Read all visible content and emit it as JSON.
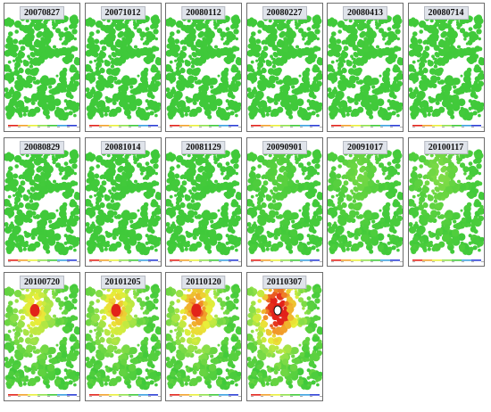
{
  "panels": [
    {
      "date": "20070827",
      "deformation": 0.0
    },
    {
      "date": "20071012",
      "deformation": 0.0
    },
    {
      "date": "20080112",
      "deformation": 0.02
    },
    {
      "date": "20080227",
      "deformation": 0.05
    },
    {
      "date": "20080413",
      "deformation": 0.08
    },
    {
      "date": "20080714",
      "deformation": 0.08
    },
    {
      "date": "20080829",
      "deformation": 0.05
    },
    {
      "date": "20081014",
      "deformation": 0.05
    },
    {
      "date": "20081129",
      "deformation": 0.08
    },
    {
      "date": "20090901",
      "deformation": 0.25
    },
    {
      "date": "20091017",
      "deformation": 0.35
    },
    {
      "date": "20100117",
      "deformation": 0.4
    },
    {
      "date": "20100720",
      "deformation": 0.7
    },
    {
      "date": "20101205",
      "deformation": 0.75
    },
    {
      "date": "20110120",
      "deformation": 0.85
    },
    {
      "date": "20110307",
      "deformation": 1.0
    }
  ],
  "colors": {
    "green": "#3fc93a",
    "light_green": "#8fe04a",
    "yellow": "#e8ef3a",
    "orange": "#f2a12a",
    "red": "#e2231a",
    "frame": "#6d6d6d",
    "label_bg": "#dfe3ea"
  }
}
